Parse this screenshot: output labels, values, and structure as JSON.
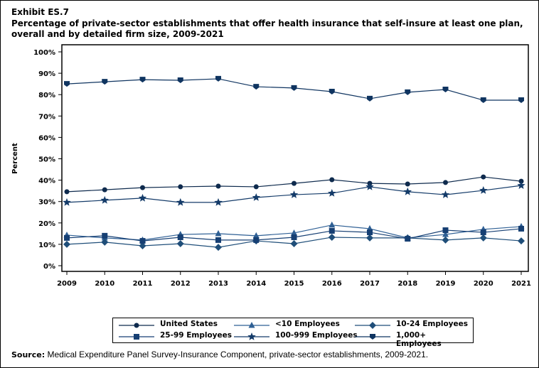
{
  "exhibit": "Exhibit ES.7",
  "source_label": "Source:",
  "source_text": "Medical Expenditure Panel Survey-Insurance Component, private-sector establishments, 2009-2021.",
  "chart_data": {
    "type": "line",
    "title": "Percentage of private-sector establishments that offer health insurance that self-insure at least one plan, overall and by detailed firm size, 2009-2021",
    "xlabel": "",
    "ylabel": "Percent",
    "ylim": [
      0,
      100
    ],
    "yticks": [
      "0%",
      "10%",
      "20%",
      "30%",
      "40%",
      "50%",
      "60%",
      "70%",
      "80%",
      "90%",
      "100%"
    ],
    "grid": false,
    "legend_position": "bottom",
    "x": [
      "2009",
      "2010",
      "2011",
      "2012",
      "2013",
      "2014",
      "2015",
      "2016",
      "2017",
      "2018",
      "2019",
      "2020",
      "2021"
    ],
    "series": [
      {
        "name": "United States",
        "marker": "circle",
        "color": "#0e2a4d",
        "values": [
          34.6,
          35.5,
          36.5,
          36.9,
          37.2,
          36.9,
          38.5,
          40.2,
          38.5,
          38.2,
          38.9,
          41.5,
          39.5
        ]
      },
      {
        "name": "<10 Employees",
        "marker": "triangle",
        "color": "#2e5f94",
        "values": [
          14.3,
          13.0,
          12.0,
          14.6,
          15.0,
          14.0,
          15.3,
          19.0,
          17.3,
          13.0,
          14.6,
          17.0,
          18.3
        ]
      },
      {
        "name": "10-24 Employees",
        "marker": "diamond",
        "color": "#1f4e79",
        "values": [
          10.0,
          11.0,
          9.3,
          10.3,
          8.6,
          11.6,
          10.3,
          13.3,
          13.0,
          13.0,
          12.0,
          13.0,
          11.6
        ]
      },
      {
        "name": "25-99 Employees",
        "marker": "square",
        "color": "#163f73",
        "values": [
          13.0,
          14.0,
          11.6,
          13.3,
          12.0,
          12.0,
          13.3,
          16.3,
          15.6,
          12.6,
          16.6,
          15.6,
          17.3
        ]
      },
      {
        "name": "100-999 Employees",
        "marker": "star",
        "color": "#143b69",
        "values": [
          29.6,
          30.6,
          31.6,
          29.6,
          29.6,
          31.9,
          33.2,
          33.9,
          36.9,
          34.6,
          33.2,
          35.2,
          37.5
        ]
      },
      {
        "name": "1,000+ Employees",
        "marker": "pentagon-down",
        "color": "#0f3460",
        "values": [
          85.0,
          86.0,
          87.0,
          86.7,
          87.4,
          83.7,
          83.1,
          81.4,
          78.1,
          81.1,
          82.4,
          77.4,
          77.4
        ]
      }
    ]
  }
}
